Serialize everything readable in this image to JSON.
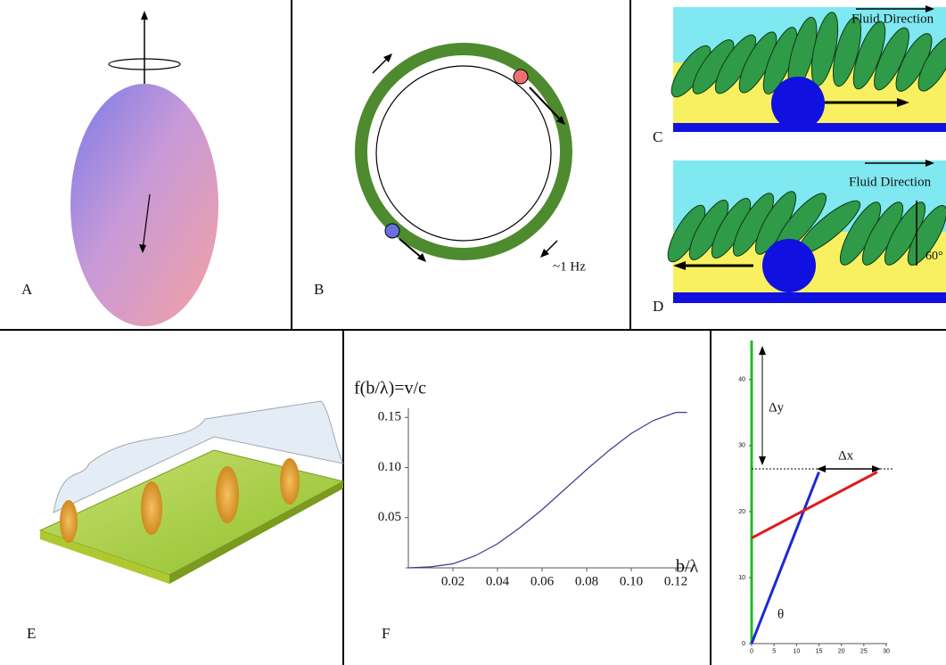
{
  "panel_labels": [
    "A",
    "B",
    "C",
    "D",
    "E",
    "F"
  ],
  "panel_b": {
    "frequency": "~1 Hz"
  },
  "panel_c": {
    "text": "Fluid Direction"
  },
  "panel_d": {
    "text": "Fluid Direction",
    "angle": "60°"
  },
  "chart_data": [
    {
      "type": "line",
      "ylabel": "f(b/λ)=v/c",
      "xlabel": "b/λ",
      "x": [
        0,
        0.01,
        0.02,
        0.03,
        0.04,
        0.05,
        0.06,
        0.07,
        0.08,
        0.09,
        0.1,
        0.11,
        0.12,
        0.125
      ],
      "series": [
        {
          "color": "#3a3a8c",
          "values": [
            0,
            0.001,
            0.004,
            0.012,
            0.024,
            0.04,
            0.058,
            0.078,
            0.098,
            0.117,
            0.134,
            0.147,
            0.155,
            0.155
          ]
        }
      ],
      "xlim": [
        0,
        0.125
      ],
      "ylim": [
        0,
        0.16
      ],
      "xticks": [
        0.02,
        0.04,
        0.06,
        0.08,
        {
          "value": 0.1,
          "label": "0.10"
        },
        0.12
      ],
      "yticks": [
        0.05,
        {
          "value": 0.1,
          "label": "0.10"
        },
        0.15
      ]
    },
    {
      "type": "line",
      "annotations": [
        "Δy",
        "Δx",
        "θ"
      ],
      "series": [
        {
          "color": "#1a2ad6",
          "x": [
            0,
            15
          ],
          "values": [
            0,
            26
          ]
        },
        {
          "color": "#e01a1a",
          "x": [
            0,
            28
          ],
          "values": [
            16,
            26
          ]
        }
      ],
      "xlim": [
        0,
        30
      ],
      "ylim": [
        0,
        47
      ],
      "xticks": [
        0,
        5,
        10,
        15,
        20,
        25,
        30
      ],
      "yticks": [
        0,
        10,
        20,
        30,
        40
      ]
    }
  ]
}
